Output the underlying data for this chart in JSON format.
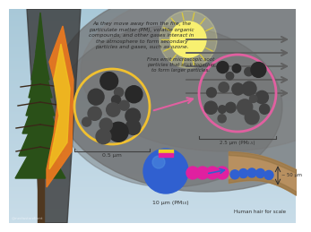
{
  "text_main": "As they move away from the fire, the\nparticulate matter (PM), volatile organic\ncompounds, and other gases interact in\nthe atmosphere to form secondary\nparticles and gases, such as ozone.",
  "text_soot": "Fires emit microscopic soot\nparticles that stick together\nto form larger particles.",
  "label_05": "0.5 μm",
  "label_25": "2.5 μm (PM₂.₅)",
  "label_10": "10 μm (PM₁₀)",
  "label_hair": "Human hair for scale",
  "label_50": "~ 50 μm",
  "watermark": "@mediastorefront",
  "sky_top": "#a8c8d8",
  "sky_bottom": "#c8dce8",
  "smoke_dark": "#505050",
  "smoke_mid": "#787878",
  "smoke_light": "#989898",
  "tree_dark": "#2a5018",
  "tree_mid": "#3a6828",
  "tree_branch": "#4a3820",
  "fire_orange": "#e87820",
  "fire_yellow": "#f0c020",
  "sun_color": "#f8f070",
  "sun_glow": "#faf8a0",
  "arrow_color": "#606060",
  "circle_yellow": "#f0c030",
  "circle_pink": "#e060a0",
  "soot_dark": "#282828",
  "soot_mid": "#484848",
  "particle_blue": "#3060d0",
  "particle_blue2": "#5090e0",
  "particle_pink": "#e020a0",
  "hair_tan": "#b89060",
  "hair_dark": "#907040",
  "label_color": "#303030",
  "text_color": "#282828"
}
